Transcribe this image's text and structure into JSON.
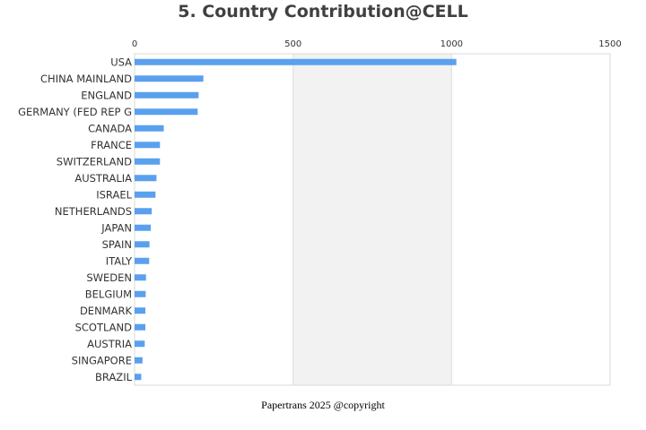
{
  "chart_data": {
    "type": "bar",
    "orientation": "horizontal",
    "title": "5. Country Contribution@CELL",
    "categories": [
      "USA",
      "CHINA MAINLAND",
      "ENGLAND",
      "GERMANY (FED REP G",
      "CANADA",
      "FRANCE",
      "SWITZERLAND",
      "AUSTRALIA",
      "ISRAEL",
      "NETHERLANDS",
      "JAPAN",
      "SPAIN",
      "ITALY",
      "SWEDEN",
      "BELGIUM",
      "DENMARK",
      "SCOTLAND",
      "AUSTRIA",
      "SINGAPORE",
      "BRAZIL"
    ],
    "values": [
      1015,
      217,
      202,
      199,
      92,
      80,
      80,
      69,
      66,
      54,
      51,
      47,
      46,
      36,
      35,
      34,
      34,
      32,
      25,
      21
    ],
    "xlim": [
      0,
      1500
    ],
    "xticks": [
      0,
      500,
      1000,
      1500
    ],
    "x_axis_position": "top",
    "grid": "alternating vertical bands",
    "bar_color": "#5AA0EE",
    "band_color": "#F2F2F2",
    "xlabel": "",
    "ylabel": ""
  },
  "footer": "Papertrans 2025 @copyright"
}
